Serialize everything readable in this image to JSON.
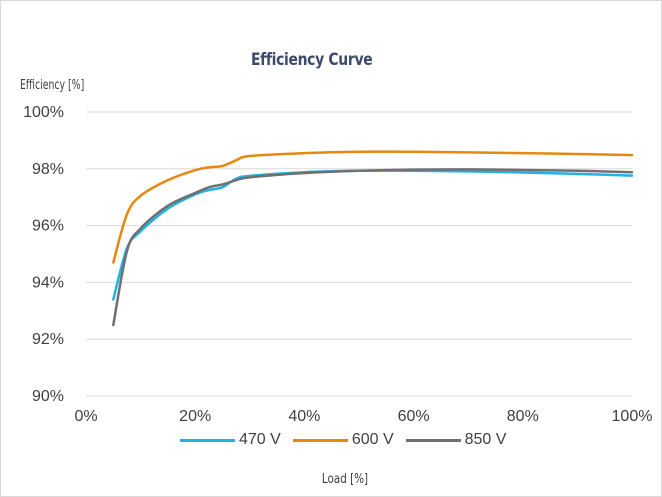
{
  "chart_data": {
    "type": "line",
    "title": "Efficiency Curve",
    "ylabel": "Efficiency [%]",
    "xlabel": "Load [%]",
    "xlim": [
      0,
      100
    ],
    "ylim": [
      90,
      100
    ],
    "x_ticks": [
      "0%",
      "20%",
      "40%",
      "60%",
      "80%",
      "100%"
    ],
    "y_ticks": [
      "90%",
      "92%",
      "94%",
      "96%",
      "98%",
      "100%"
    ],
    "grid": "horizontal",
    "legend_position": "bottom",
    "series": [
      {
        "name": "470 V",
        "color": "#1fb2e5",
        "x": [
          5,
          7.5,
          10,
          15,
          20,
          22.5,
          25,
          27.5,
          30,
          40,
          50,
          60,
          70,
          80,
          90,
          100
        ],
        "y": [
          93.4,
          95.2,
          95.8,
          96.6,
          97.1,
          97.25,
          97.35,
          97.65,
          97.75,
          97.88,
          97.93,
          97.93,
          97.91,
          97.87,
          97.82,
          97.76
        ]
      },
      {
        "name": "600 V",
        "color": "#e8870f",
        "x": [
          5,
          7.5,
          10,
          15,
          20,
          22.5,
          25,
          27.5,
          30,
          40,
          50,
          60,
          70,
          80,
          90,
          100
        ],
        "y": [
          94.7,
          96.4,
          97.05,
          97.6,
          97.95,
          98.05,
          98.1,
          98.3,
          98.45,
          98.55,
          98.6,
          98.6,
          98.58,
          98.55,
          98.52,
          98.48
        ]
      },
      {
        "name": "850 V",
        "color": "#707070",
        "x": [
          5,
          7.5,
          10,
          15,
          20,
          22.5,
          25,
          27.5,
          30,
          40,
          50,
          60,
          70,
          80,
          90,
          100
        ],
        "y": [
          92.5,
          95.1,
          95.9,
          96.7,
          97.15,
          97.35,
          97.45,
          97.6,
          97.7,
          97.85,
          97.93,
          97.97,
          97.98,
          97.96,
          97.93,
          97.88
        ]
      }
    ]
  }
}
